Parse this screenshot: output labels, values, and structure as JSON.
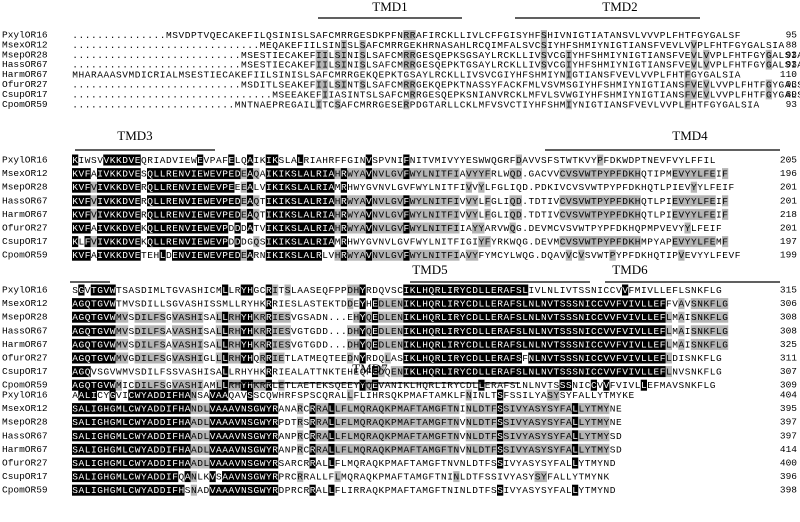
{
  "names": [
    "PxylOR16",
    "MsexOR12",
    "MsepOR28",
    "HassOR67",
    "HarmOR67",
    "OfurOR27",
    "CsupOR17",
    "CpomOR59"
  ],
  "blocks": [
    {
      "tmd": [
        "TMD1",
        "TMD2"
      ],
      "rows": [
        "...............MSVDPTVQECAKEFILQSINISLSAFCMRRGESDKPFNRRAFIRCKLLIVLCFFGISYHFSHIVNIGTIATANSVLVVVPLFHTFGYGALSF",
        "..............................MEQAKEFIILSINISLSAFCMRRGEKHRNASAHLRCQIMFALSVCSIYHFSHMIYNIGTIANSFVEVLVVPLFHTFGYGALSIA",
        "...........................MSESTIECAKEFIILSINISLSAFCMRRGESQEPKSGSAYLRCKLLIVSVCGIYHFSHMIYNIGTIANSFVEVLVVPLFHTFGYGALSIA",
        "...........................MSESTIECAKEFIILSINISLSAFCMRRGESQEPKTGSAYLRCKLLIVSVCGIYHFSHMIYNIGTIANSFVEVLVVPLFHTFGYGALSIA",
        "MHARAAASVMDICRIALMSESTIECAKEFIILSINISLSAFCMRRGEKQEPKTGSAYLRCKLLIVSVCGIYHFSHMIYNIGTIANSFVEVLVVPLFHTFGYGALSIA",
        "...........................MSDITLSEAKEFIILSINTSLSAFCMRRGEKQEPKTNASSYFACKFMLVSVMSGIYHFSHMIYNIGTIANSFVEVLVVPLFHTFGYGALSIA",
        "................................MSEEAKEFIIASINTSLSAFCMRRGESQEPKSNIANVRCKLMFVLSVWGIYHFSHMIYNIGTIANSFVEVLVVPLFHTFGYGALSIT",
        "..........................MNTNAEPREGAILITCSAFCMRRGESERPDGTARLLCKLMFVSVCTIYHFSHMIYNIGTIANSFVEVLVVPLFHTFGYGALSIA"
      ],
      "ends": [
        95,
        88,
        93,
        93,
        110,
        93,
        89,
        93
      ]
    },
    {
      "tmd": [
        "TMD3",
        "TMD4"
      ],
      "rows": [
        "KIWSVVKKDVEQRIADVIEWEVPAFELQAIKIKSLALRIAHRFFGINVSPVNIFNITVMIVYYESWWQGRFDAVVSFSTWTKVYPFDKWDPTNEVFVYLFFIL",
        "KVFAIVKKDVESQLLRENVIEWEVPEDEAQAIKIKSLALRIAHRWYAVNVLGVFWYLNITFIAVYYFRLWQD.GACVVCVSVWTPYPFDKHQTIPMEVYYLFEIF",
        "KVFVIVKKDVERQLLRENVIEWEVPEEEALVIKIKSLALRIAMRHWYGVNVLGVFWYLNITFIVVYLFGLIQD.PDKIVCVSVWTPYPFDKHQTLPIEVYYLFEIF",
        "KVFVIVKKDVERQLLRENVIEWEVPEDEAQTIKIKSLALRIAHRWYAVNVLGVFWYLNITFIVVYLFGLIQD.TDTIVCVSVWTPYPFDKHQTLPIEVYYLFEIF",
        "KVFVIVKKDVERQLLRENVIEWEVPEDEAQTIKIKSLALRIAHRWYAVNVLGVFWYLNITFIVVYLFGLIQD.TDTIVCVSVWTPYPFDKHQTLPIEVYYLFEIF",
        "KVFAIVKKDVEKQLLRENVIEWEVPDDDATVIKIKSLALRIAHRWYAVNVLGVFWYLNITFIIAYYARVWQG.DEVMCVSVWTPYPFDKHQPMPVEVYYLFEIF",
        "KLFVIVKKDVEKQLLRENVIEWEVPDDDGQSIKIKSLALRIAMRHWYGVNVLGVFWYLNITFIGIYFYRKWQG.DEVMCVSVWTPYPFDKHMPYAPEVYYLFEMF",
        "KVFAIVKKDVETEHLDENVIEWEVPEDEARNIKIKSLALRLVHRWYAVNVLGVFWYLNITFIAVYFYMCYLWQG.DQAVVCVSVWTPYPFDKHQTIPVEVYYLFEVF"
      ],
      "ends": [
        205,
        196,
        201,
        201,
        218,
        201,
        197,
        199
      ]
    },
    {
      "tmd": [
        "TMD5",
        "TMD6"
      ],
      "rows": [
        "SGVTGVWTSASDIMLTGVASHICMLLRYHGCRITSLAASEQFPPDHYRDQVSCIKLHQRLIRYCDLLERAFSLIVLNLIVTSSNICCVVFMIVLLEFLSNKFLG",
        "AGQTGVWTMVSDILLSGVASHISSMLLRYHKRRIESLASTEKTDDEYHEDLENIKLHQRLIRYCDLLERAFSLNLNVTSSSNICCVVFVIVLLEFFVAVSNKFLG",
        "AGQTGVWMVSDILFSGVASHISALLRHYHKRRIESVGSADN...EHYQEDLENIKLHQRLIRYCDLLERAFSLNLNVTSSSNICCVVFVIVLLEFLMAISNKFLG",
        "AGQTGVWMVSDILFSAVASHISALLRHYHKRRIESVGTGDD...DHYQEDLENIKLHQRLIRYCDLLERAFSLNLNVTSSSNICCVVFVIVLLEFLMAISNKFLG",
        "AGQTGVWMVSDILFSAVASHISALLRHYHKRRIESVGTGDD...DHYQEDLENIKLHQRLIRYCDLLERAFSLNLNVTSSSNICCVVFVIVLLEFLMAISNKFLG",
        "AGQTGVWMVGDILFSGVASHIGLLLRHYHQRRIETLATMEQTEEDNYRDQLASIKLHQRLIRYCDLLERAFSFNLNVTSSSNICCVVFVIVLLEFLDISNKFLG",
        "AGQVSGVWMVSDILFSSVASHISALLRHYHKRRIEALATTNKTEHEQFEDQENIKLHQRLIRYCDLLERAFSLNLNVTSSSNICCVVFVIVLLEFLNVSNKFLG",
        "AGQTGVWMICDILFSGVASHIAMLLRHYHKRRLETLAETEKSQEEYYQEVANIKLHQRLIRYCDLLERAFSLNLNVTSSSNICCVVFVIVLLEFMAVSNKFLG"
      ],
      "ends": [
        315,
        306,
        308,
        308,
        325,
        311,
        307,
        309
      ]
    },
    {
      "tmd": [
        "TMD7"
      ],
      "rows": [
        "AALICYGVICWYADDIFHANSAVAAQAVSSCQWHRFSPSCQRALLFLIHRSQKPMAFTAMKLFNINLTSFSSILYASYSYFALLYTMYKE",
        "SALIGHGMLCWYADDIFHANDLVAAAVNSGWYRANARCRRALLFLMQRAQKPMAFTAMGFTNINLDTFSSIVYASYSYFALLYTMYNE",
        "SALIGHGMLCWYADDIFHAADLVAAAVNSGWYRPDTRSRRALLFLMQRAQKPMAFTAMGFTNVNLDTFSSIVYASYSYFALLYTMYNE",
        "SALIGHGMLCWYADDIFHAADLVAAAVNSGWYRANPRCRRALLFLMQRAQKPMAFTAMGFTNVNLDTFSSIVYASYSYFALLYTMYSD",
        "SALIGHGMLCWYADDIFHAADLVAAAVNSGWYRANPRCRRALLFLMQRAQKPMAFTAMGFTNVNLDTFSSIVYASYSYFALLYTMYSD",
        "SALIGHGMLCWYADDIFHAADLVAAAVNSGWYRSARCRRALLFLMQRAQKPMAFTAMGFTNVNLDTFSSIVYASYSYFALLYTMYND",
        "SALIGHGMLCWYADDIFQANLKVSAAVNSGWYRPRCRRALLFLMQRAQKPMAFTAMGFTNINLDTFSSIVYASYSYFALLYTMYNK",
        "SALIGHGMLCWYADDIFHSNADVAAAVNSGWYRDPRCRRALLFLIRRAQKPMAFTAMGFTNINLDTFSSIVYASYSYFALLYTMYND"
      ],
      "ends": [
        404,
        395,
        397,
        397,
        414,
        400,
        396,
        398
      ]
    }
  ]
}
